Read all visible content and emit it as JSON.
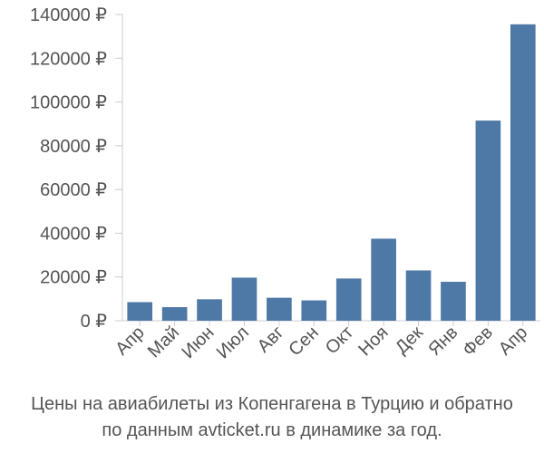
{
  "chart_data": {
    "type": "bar",
    "categories": [
      "Апр",
      "Май",
      "Июн",
      "Июл",
      "Авг",
      "Сен",
      "Окт",
      "Ноя",
      "Дек",
      "Янв",
      "Фев",
      "Апр"
    ],
    "values": [
      8500,
      6200,
      9800,
      19700,
      10500,
      9300,
      19300,
      37500,
      23000,
      17800,
      91500,
      135500
    ],
    "ylim": [
      0,
      140000
    ],
    "yticks": [
      0,
      20000,
      40000,
      60000,
      80000,
      100000,
      120000,
      140000
    ],
    "tick_labels": [
      "0 ₽",
      "20000 ₽",
      "40000 ₽",
      "60000 ₽",
      "80000 ₽",
      "100000 ₽",
      "120000 ₽",
      "140000 ₽"
    ],
    "grid": false,
    "bar_color": "#4e79a7",
    "caption_line1": "Цены на авиабилеты из Копенгагена в Турцию и обратно",
    "caption_line2": "по данным avticket.ru в динамике за год."
  }
}
